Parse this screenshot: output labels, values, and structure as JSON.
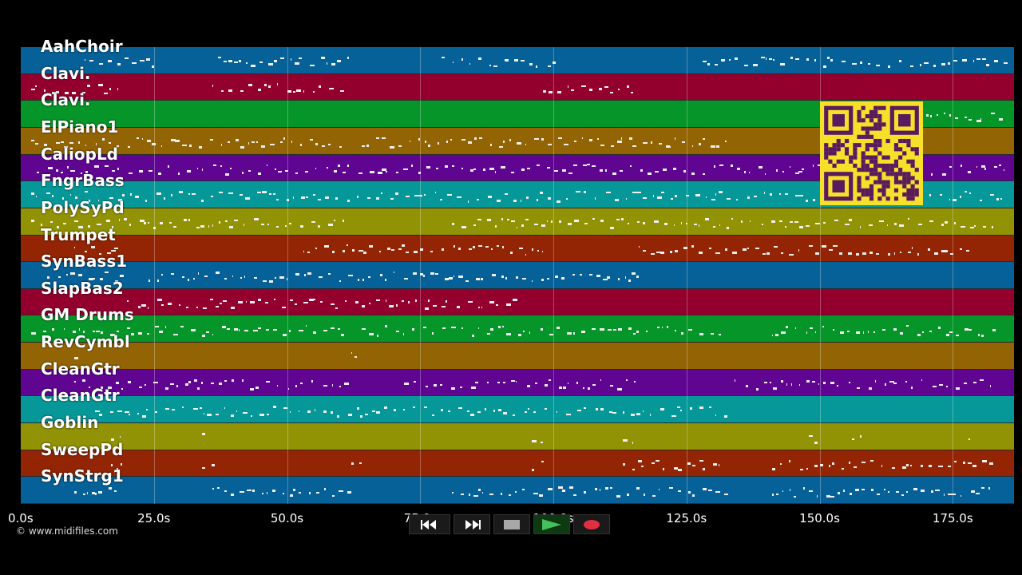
{
  "tracks": [
    {
      "name": "AahChoir",
      "color": "#056197"
    },
    {
      "name": "Clavi.",
      "color": "#93002e"
    },
    {
      "name": "Clavi.",
      "color": "#069528"
    },
    {
      "name": "ElPiano1",
      "color": "#936403"
    },
    {
      "name": "CaliopLd",
      "color": "#5f0592"
    },
    {
      "name": "FngrBass",
      "color": "#069898"
    },
    {
      "name": "PolySyPd",
      "color": "#929205"
    },
    {
      "name": "Trumpet",
      "color": "#932504"
    },
    {
      "name": "SynBass1",
      "color": "#056197"
    },
    {
      "name": "SlapBas2",
      "color": "#93002e"
    },
    {
      "name": "GM Drums",
      "color": "#069528"
    },
    {
      "name": "RevCymbl",
      "color": "#936403"
    },
    {
      "name": "CleanGtr",
      "color": "#5f0592"
    },
    {
      "name": "CleanGtr",
      "color": "#069898"
    },
    {
      "name": "Goblin",
      "color": "#929205"
    },
    {
      "name": "SweepPd",
      "color": "#932504"
    },
    {
      "name": "SynStrg1",
      "color": "#056197"
    }
  ],
  "timeline": {
    "duration_s": 186.5,
    "ticks": [
      "0.0s",
      "25.0s",
      "50.0s",
      "75.0s",
      "100.0s",
      "125.0s",
      "150.0s",
      "175.0s"
    ],
    "tick_values": [
      0,
      25,
      50,
      75,
      100,
      125,
      150,
      175
    ]
  },
  "copyright": "© www.midifiles.com",
  "transport": [
    {
      "name": "rewind-button",
      "icon": "rewind-icon"
    },
    {
      "name": "fast-forward-button",
      "icon": "fast-forward-icon"
    },
    {
      "name": "stop-button",
      "icon": "stop-icon"
    },
    {
      "name": "play-button",
      "icon": "play-icon"
    },
    {
      "name": "record-button",
      "icon": "record-icon"
    }
  ],
  "qr_code": {
    "color": "#f7e02a",
    "module_color": "#5a1a5e"
  }
}
